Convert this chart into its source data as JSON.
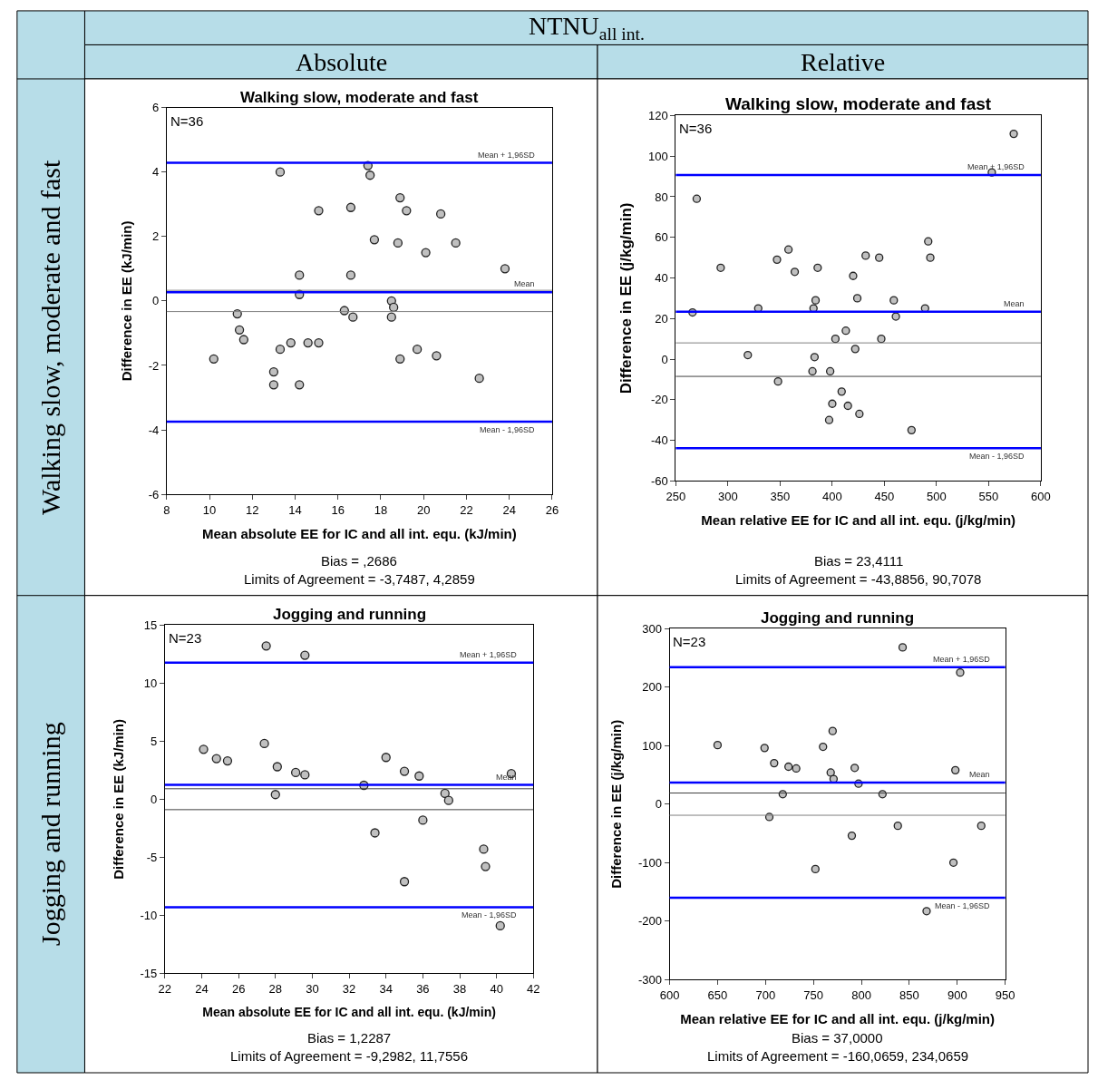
{
  "chart_data": [
    {
      "type": "other",
      "annotations": [
        "NTNU$_{all int.}$",
        "Absolute",
        "Relative",
        "Walking slow, moderate and fast",
        "Jogging and running"
      ]
    },
    {
      "type": "scatter",
      "title": "Walking slow, moderate and fast",
      "xlabel": "Mean absolute EE for IC and all int. equ. (kJ/min)",
      "ylabel": "Difference in EE (kJ/min)",
      "annotations": [
        "N=36",
        "Bias = ,2686",
        "Limits of Agreement = -3,7487, 4,2859"
      ],
      "xlim": [
        8,
        26
      ],
      "xticks": [
        8,
        10,
        12,
        14,
        16,
        18,
        20,
        22,
        24,
        26
      ],
      "ylim": [
        -6,
        6
      ],
      "yticks": [
        -6,
        -4,
        -2,
        0,
        2,
        4,
        6
      ],
      "marker": "circle",
      "ref_lines": [
        {
          "axis": "y",
          "value": 4.2859,
          "label": "Mean + 1,96SD",
          "color": "#0000ff"
        },
        {
          "axis": "y",
          "value": 0.2686,
          "label": "Mean",
          "color": "#0000ff"
        },
        {
          "axis": "y",
          "value": -3.7487,
          "label": "Mean - 1,96SD",
          "color": "#0000ff"
        },
        {
          "axis": "y",
          "value": 0.33,
          "color": "#808080"
        },
        {
          "axis": "y",
          "value": -0.33,
          "color": "#808080"
        }
      ],
      "series": [
        {
          "color": "#c0c0c0",
          "x": [
            10.2,
            11.3,
            11.4,
            11.6,
            13.0,
            13.0,
            13.3,
            13.3,
            13.8,
            14.2,
            14.2,
            14.2,
            14.6,
            15.1,
            15.1,
            16.3,
            16.6,
            16.6,
            16.7,
            17.4,
            17.5,
            17.7,
            18.5,
            18.6,
            18.5,
            18.8,
            18.9,
            18.9,
            19.2,
            19.7,
            20.1,
            20.6,
            20.8,
            21.5,
            22.6,
            23.8
          ],
          "values": [
            -1.8,
            -0.4,
            -0.9,
            -1.2,
            -2.2,
            -2.6,
            4.0,
            -1.5,
            -1.3,
            0.8,
            0.2,
            -2.6,
            -1.3,
            2.8,
            -1.3,
            -0.3,
            2.9,
            0.8,
            -0.5,
            4.2,
            3.9,
            1.9,
            0.0,
            -0.2,
            -0.5,
            1.8,
            3.2,
            -1.8,
            2.8,
            -1.5,
            1.5,
            -1.7,
            2.7,
            1.8,
            -2.4,
            1.0
          ]
        }
      ]
    },
    {
      "type": "scatter",
      "title": "Walking slow, moderate and fast",
      "xlabel": "Mean relative EE for IC and all int. equ. (j/kg/min)",
      "ylabel": "Difference in EE (j/kg/min)",
      "annotations": [
        "N=36",
        "Bias = 23,4111",
        "Limits of Agreement = -43,8856, 90,7078"
      ],
      "xlim": [
        250,
        600
      ],
      "xticks": [
        250,
        300,
        350,
        400,
        450,
        500,
        550,
        600
      ],
      "ylim": [
        -60,
        120
      ],
      "yticks": [
        -60,
        -40,
        -20,
        0,
        20,
        40,
        60,
        80,
        100,
        120
      ],
      "marker": "circle",
      "ref_lines": [
        {
          "axis": "y",
          "value": 90.7078,
          "label": "Mean + 1,96SD",
          "color": "#0000ff"
        },
        {
          "axis": "y",
          "value": 23.4111,
          "label": "Mean",
          "color": "#0000ff"
        },
        {
          "axis": "y",
          "value": -43.8856,
          "label": "Mean - 1,96SD",
          "color": "#0000ff"
        },
        {
          "axis": "y",
          "value": 8,
          "color": "#808080"
        },
        {
          "axis": "y",
          "value": -8.5,
          "color": "#404040"
        }
      ],
      "series": [
        {
          "color": "#c0c0c0",
          "x": [
            266,
            270,
            293,
            319,
            329,
            347,
            348,
            358,
            364,
            381,
            382,
            384,
            383,
            386,
            397,
            398,
            400,
            403,
            409,
            413,
            415,
            420,
            422,
            424,
            426,
            432,
            445,
            447,
            459,
            461,
            476,
            489,
            492,
            494,
            553,
            574
          ],
          "values": [
            23,
            79,
            45,
            2,
            25,
            49,
            -11,
            54,
            43,
            -6,
            25,
            29,
            1,
            45,
            -30,
            -6,
            -22,
            10,
            -16,
            14,
            -23,
            41,
            5,
            30,
            -27,
            51,
            50,
            10,
            29,
            21,
            -35,
            25,
            58,
            50,
            92,
            111
          ]
        }
      ]
    },
    {
      "type": "scatter",
      "title": "Jogging and running",
      "xlabel": "Mean absolute EE for IC and all int. equ. (kJ/min)",
      "ylabel": "Difference in EE (kJ/min)",
      "annotations": [
        "N=23",
        "Bias = 1,2287",
        "Limits of Agreement = -9,2982, 11,7556"
      ],
      "xlim": [
        22,
        42
      ],
      "xticks": [
        22,
        24,
        26,
        28,
        30,
        32,
        34,
        36,
        38,
        40,
        42
      ],
      "ylim": [
        -15,
        15
      ],
      "yticks": [
        -15,
        -10,
        -5,
        0,
        5,
        10,
        15
      ],
      "marker": "circle",
      "ref_lines": [
        {
          "axis": "y",
          "value": 11.7556,
          "label": "Mean + 1,96SD",
          "color": "#0000ff"
        },
        {
          "axis": "y",
          "value": 1.2287,
          "label": "Mean",
          "color": "#0000ff"
        },
        {
          "axis": "y",
          "value": -9.2982,
          "label": "Mean - 1,96SD",
          "color": "#0000ff"
        },
        {
          "axis": "y",
          "value": 0.9,
          "color": "#404040"
        },
        {
          "axis": "y",
          "value": -0.9,
          "color": "#404040"
        }
      ],
      "series": [
        {
          "color": "#c0c0c0",
          "x": [
            24.1,
            24.8,
            25.4,
            27.4,
            27.5,
            28.1,
            28.0,
            29.1,
            29.6,
            29.6,
            32.8,
            33.4,
            34.0,
            35.0,
            35.0,
            35.8,
            36.0,
            37.2,
            37.4,
            39.3,
            39.4,
            40.2,
            40.8
          ],
          "values": [
            4.3,
            3.5,
            3.3,
            4.8,
            13.2,
            2.8,
            0.4,
            2.3,
            12.4,
            2.1,
            1.2,
            -2.9,
            3.6,
            2.4,
            -7.1,
            2.0,
            -1.8,
            0.5,
            -0.1,
            -4.3,
            -5.8,
            -10.9,
            2.2
          ]
        }
      ]
    },
    {
      "type": "scatter",
      "title": "Jogging and running",
      "xlabel": "Mean relative EE for IC and all int. equ. (j/kg/min)",
      "ylabel": "Difference in EE (j/kg/min)",
      "annotations": [
        "N=23",
        "Bias = 37,0000",
        "Limits of Agreement = -160,0659, 234,0659"
      ],
      "xlim": [
        600,
        950
      ],
      "xticks": [
        600,
        650,
        700,
        750,
        800,
        850,
        900,
        950
      ],
      "ylim": [
        -300,
        300
      ],
      "yticks": [
        -300,
        -200,
        -100,
        0,
        100,
        200,
        300
      ],
      "marker": "circle",
      "ref_lines": [
        {
          "axis": "y",
          "value": 234.0659,
          "label": "Mean + 1,96SD",
          "color": "#0000ff"
        },
        {
          "axis": "y",
          "value": 37.0,
          "label": "Mean",
          "color": "#0000ff"
        },
        {
          "axis": "y",
          "value": -160.0659,
          "label": "Mean - 1,96SD",
          "color": "#0000ff"
        },
        {
          "axis": "y",
          "value": 19,
          "color": "#404040"
        },
        {
          "axis": "y",
          "value": -19,
          "color": "#808080"
        }
      ],
      "series": [
        {
          "color": "#c0c0c0",
          "x": [
            650,
            699,
            704,
            709,
            718,
            724,
            732,
            752,
            760,
            768,
            770,
            771,
            790,
            793,
            797,
            822,
            838,
            843,
            868,
            896,
            898,
            903,
            925
          ],
          "values": [
            101,
            96,
            -22,
            70,
            17,
            64,
            61,
            -111,
            98,
            54,
            125,
            43,
            -54,
            62,
            35,
            17,
            -37,
            268,
            -183,
            -100,
            58,
            225,
            -37
          ]
        }
      ]
    }
  ]
}
